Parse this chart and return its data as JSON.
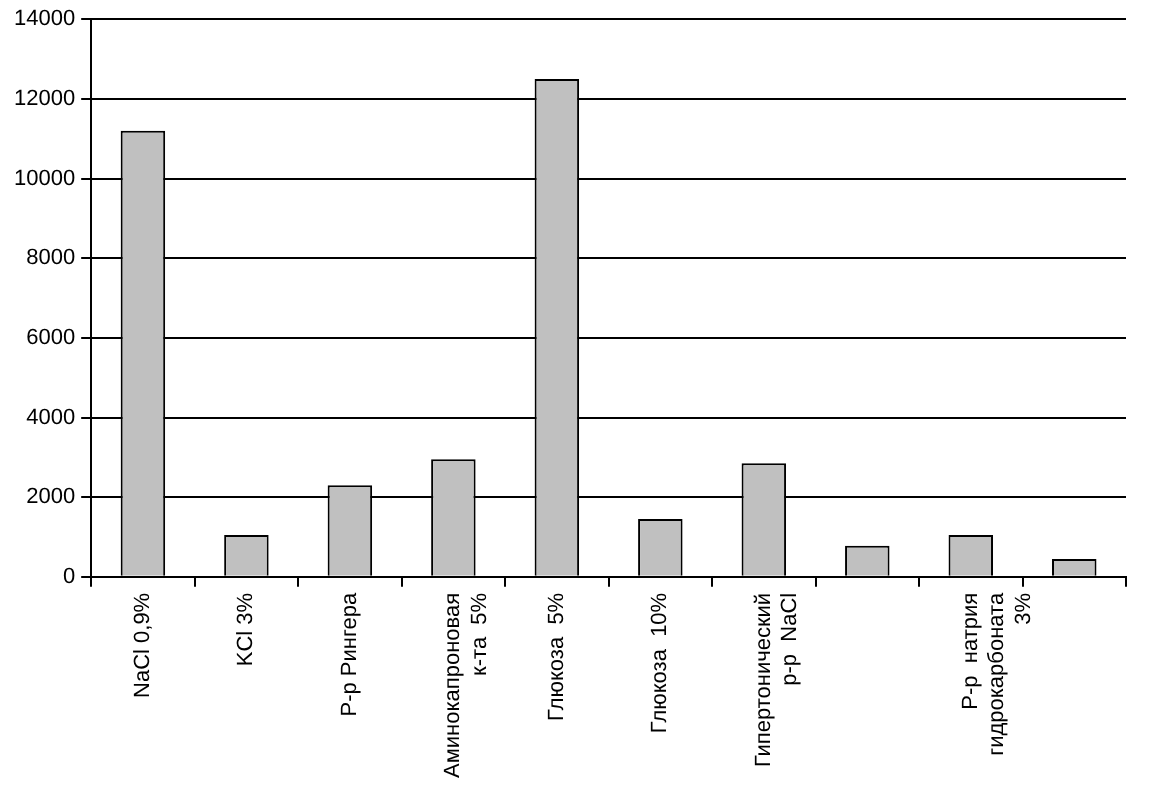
{
  "chart_data": {
    "type": "bar",
    "categories": [
      "NaCl 0,9%",
      "KCl 3%",
      "Р-р Рингера",
      "Аминокапроновая\nк-та  5%",
      "Глюкоза  5%",
      "Глюкоза  10%",
      "Гипертонический\nр-р  NaCl",
      null,
      "Р-р  натрия\nгидрокарбоната\n3%",
      null
    ],
    "values": [
      11200,
      1050,
      2300,
      2950,
      12500,
      1450,
      2850,
      780,
      1050,
      450
    ],
    "color": "#c0c0c0",
    "ylim": [
      0,
      14000
    ],
    "yticks": [
      0,
      2000,
      4000,
      6000,
      8000,
      10000,
      12000,
      14000
    ],
    "grid": "y",
    "legend": false
  }
}
